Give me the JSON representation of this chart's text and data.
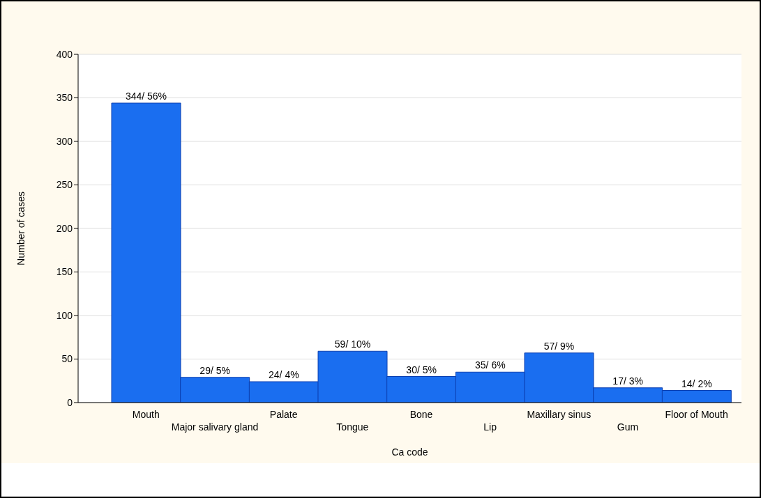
{
  "chart_data": {
    "type": "bar",
    "xlabel": "Ca code",
    "ylabel": "Number of cases",
    "categories": [
      "Mouth",
      "Major salivary gland",
      "Palate",
      "Tongue",
      "Bone",
      "Lip",
      "Maxillary sinus",
      "Gum",
      "Floor of Mouth"
    ],
    "values": [
      344,
      29,
      24,
      59,
      30,
      35,
      57,
      17,
      14
    ],
    "value_labels": [
      "344/ 56%",
      "29/ 5%",
      "24/ 4%",
      "59/ 10%",
      "30/ 5%",
      "35/ 6%",
      "57/ 9%",
      "17/ 3%",
      "14/ 2%"
    ],
    "color": "#1a6ef0",
    "ylim": [
      0,
      400
    ],
    "yticks": [
      0,
      50,
      100,
      150,
      200,
      250,
      300,
      350,
      400
    ],
    "grid": "y",
    "legend": false
  }
}
